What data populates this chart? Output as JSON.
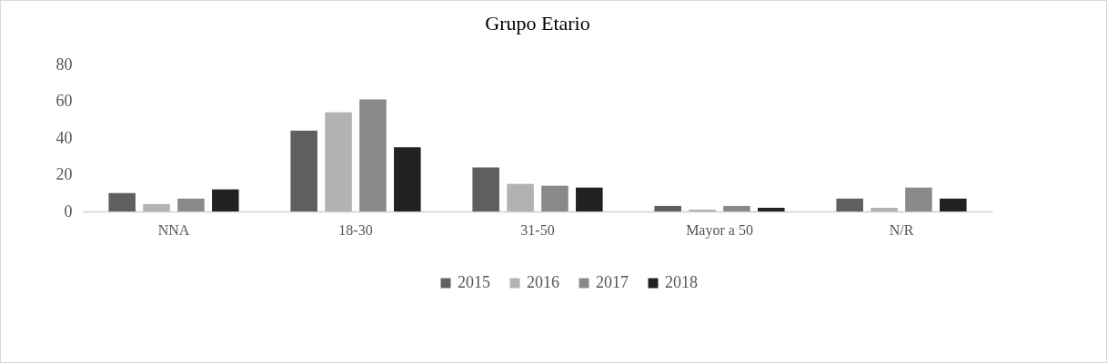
{
  "chart_data": {
    "type": "bar",
    "title": "Grupo Etario",
    "categories": [
      "NNA",
      "18-30",
      "31-50",
      "Mayor a 50",
      "N/R"
    ],
    "series": [
      {
        "name": "2015",
        "color": "#5f5f5f",
        "values": [
          10,
          44,
          24,
          3,
          7
        ]
      },
      {
        "name": "2016",
        "color": "#b2b2b2",
        "values": [
          4,
          54,
          15,
          1,
          2
        ]
      },
      {
        "name": "2017",
        "color": "#898989",
        "values": [
          7,
          61,
          14,
          3,
          13
        ]
      },
      {
        "name": "2018",
        "color": "#222222",
        "values": [
          12,
          35,
          13,
          2,
          7
        ]
      }
    ],
    "ylim": [
      0,
      80
    ],
    "yticks": [
      0,
      20,
      40,
      60,
      80
    ],
    "grid": false,
    "legend": "bottom"
  }
}
